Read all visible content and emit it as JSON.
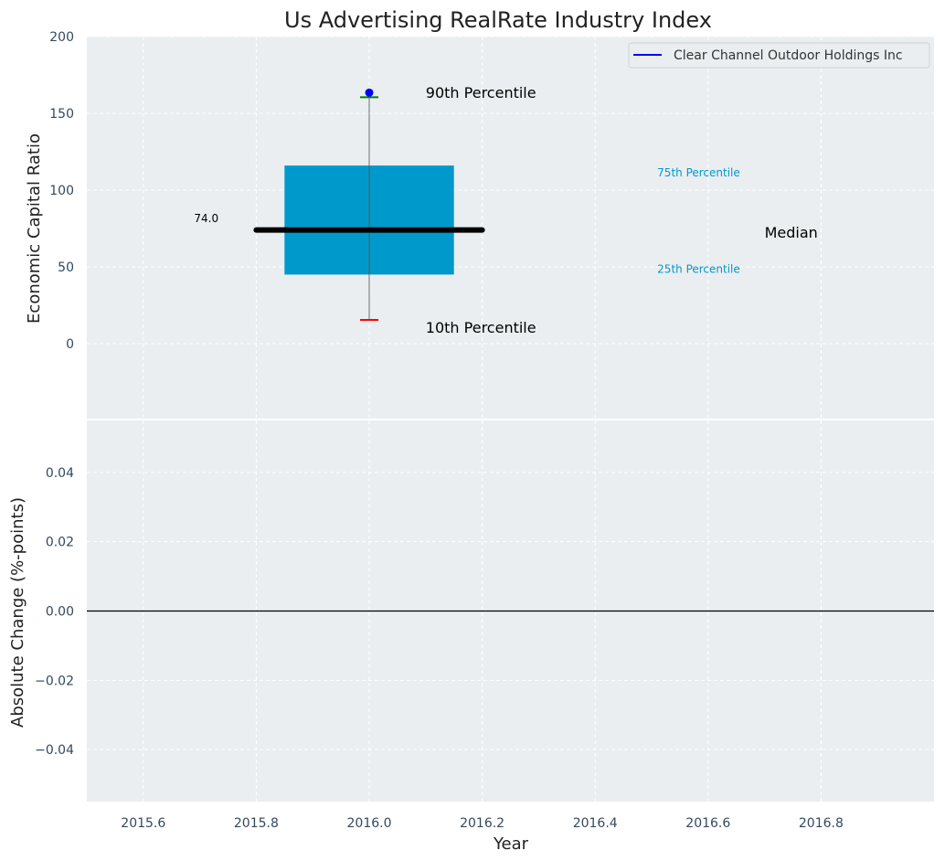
{
  "chart_data": [
    {
      "type": "box",
      "title": "Us Advertising RealRate Industry Index",
      "xlabel": "",
      "ylabel": "Economic Capital Ratio",
      "xlim": [
        2015.5,
        2017.0
      ],
      "ylim": [
        -50,
        200
      ],
      "yticks": [
        0,
        50,
        100,
        150,
        200
      ],
      "grid": true,
      "box": {
        "x": 2016.0,
        "x_from": 2015.85,
        "x_to": 2016.15,
        "q1": 45,
        "q3": 116,
        "median": 74.0,
        "median_x_from": 2015.8,
        "median_x_to": 2016.2,
        "p10": 15.5,
        "p90": 160.5
      },
      "company_point": {
        "x": 2016.0,
        "y": 163.5
      },
      "annotations": [
        {
          "text": "90th Percentile",
          "x": 2016.1,
          "y": 163,
          "color": "#000000"
        },
        {
          "text": "10th Percentile",
          "x": 2016.1,
          "y": 10,
          "color": "#000000"
        },
        {
          "text": "75th Percentile",
          "x": 2016.51,
          "y": 112,
          "color": "#0099cc"
        },
        {
          "text": "25th Percentile",
          "x": 2016.51,
          "y": 49,
          "color": "#0099cc"
        },
        {
          "text": "Median",
          "x": 2016.7,
          "y": 72,
          "color": "#000000"
        },
        {
          "text": "74.0",
          "x": 2015.69,
          "y": 82,
          "color": "#000000"
        }
      ],
      "legend": {
        "entries": [
          "Clear Channel Outdoor Holdings Inc"
        ],
        "color": "#0000ff",
        "placement": "top-right"
      }
    },
    {
      "type": "line",
      "xlabel": "Year",
      "ylabel": "Absolute Change (%-points)",
      "xlim": [
        2015.5,
        2017.0
      ],
      "ylim": [
        -0.055,
        0.055
      ],
      "xticks": [
        "2015.6",
        "2015.8",
        "2016.0",
        "2016.2",
        "2016.4",
        "2016.6",
        "2016.8"
      ],
      "yticks": [
        "0.04",
        "0.02",
        "0.00",
        "−0.02",
        "−0.04"
      ],
      "ytick_values": [
        0.04,
        0.02,
        0.0,
        -0.02,
        -0.04
      ],
      "hline": 0.0,
      "grid": true
    }
  ],
  "colors": {
    "box": "#0099cc",
    "bg": "#eaeef0",
    "p90": "#008000",
    "p10": "#ff0000",
    "point": "#0000ff"
  }
}
